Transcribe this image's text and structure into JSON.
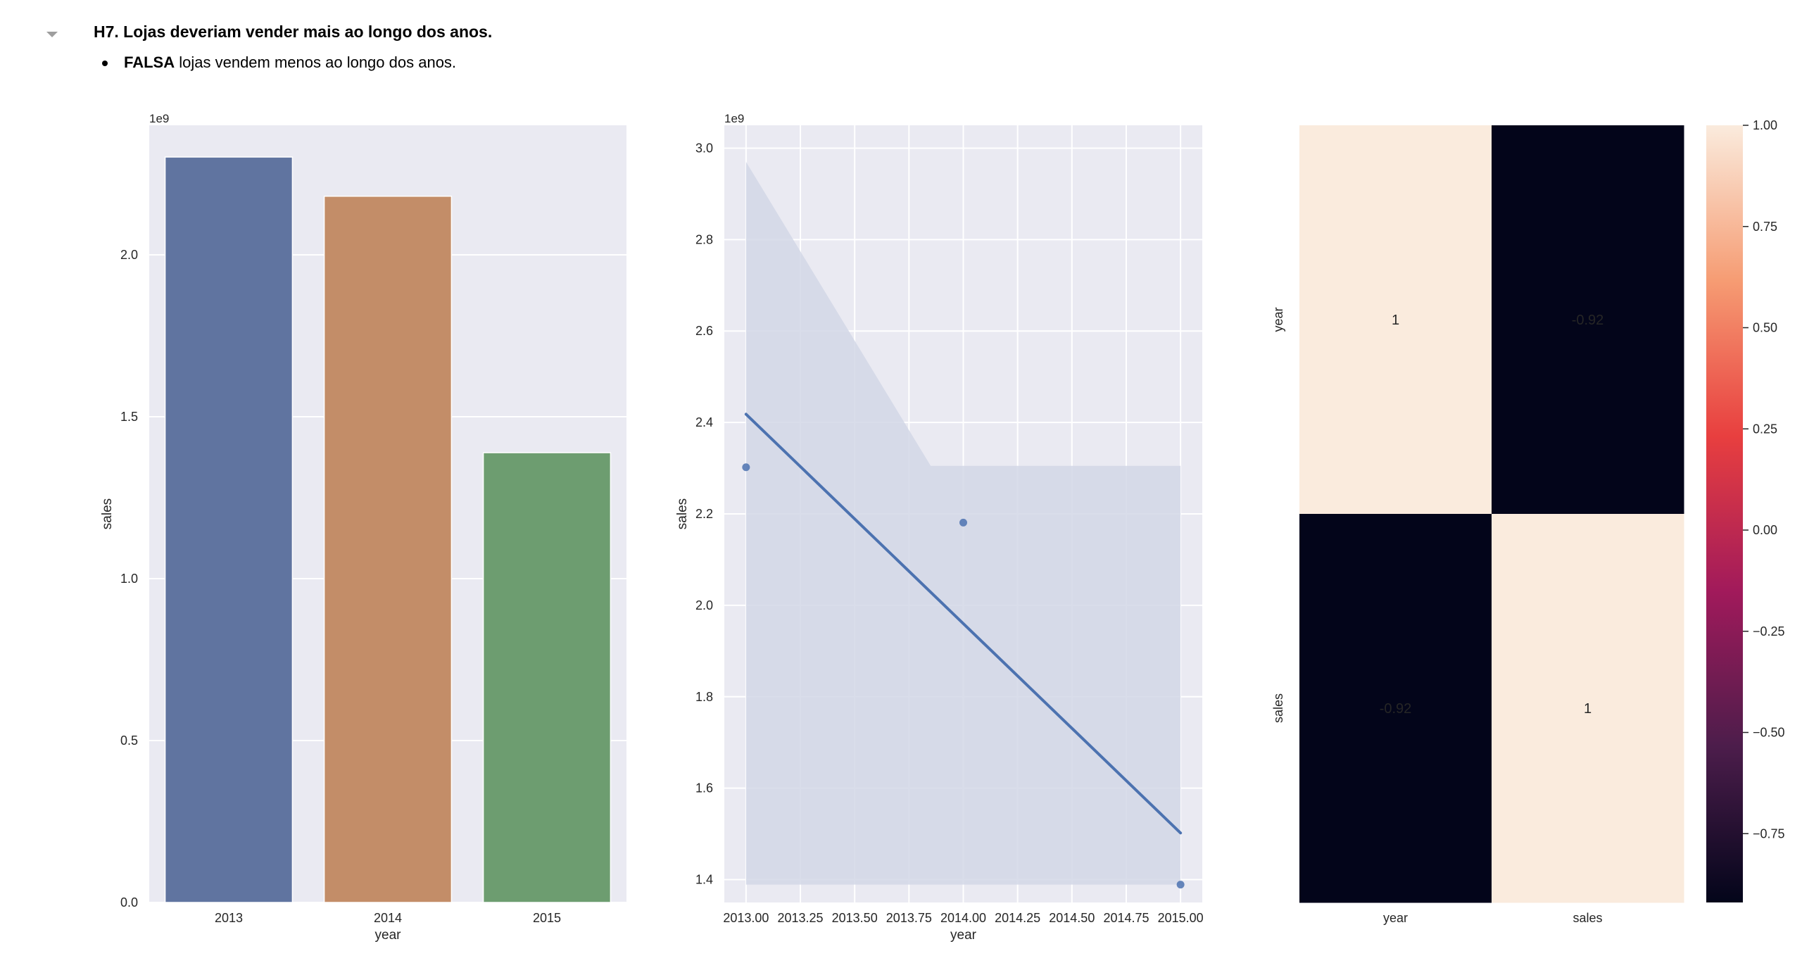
{
  "cell": {
    "heading": "H7. Lojas deveriam vender mais ao longo dos anos.",
    "bullet": {
      "bold": "FALSA",
      "text": " lojas vendem menos ao longo dos anos."
    }
  },
  "colors": {
    "axes_bg": "#eaeaf2",
    "grid": "#ffffff",
    "bar_2013": "#6074a0",
    "bar_2014": "#c38d68",
    "bar_2015": "#6d9d70",
    "regression_line": "#4c72b0",
    "ci_band": "#d2d7e6"
  },
  "chart_data": [
    {
      "type": "bar",
      "categories": [
        "2013",
        "2014",
        "2015"
      ],
      "values": [
        2302000000,
        2181000000,
        1389000000
      ],
      "xlabel": "year",
      "ylabel": "sales",
      "ylim": [
        0,
        2400000000
      ],
      "yticks": [
        0.0,
        0.5,
        1.0,
        1.5,
        2.0
      ],
      "ytick_labels": [
        "0.0",
        "0.5",
        "1.0",
        "1.5",
        "2.0"
      ],
      "offset_label": "1e9",
      "grid": true
    },
    {
      "type": "scatter",
      "x": [
        2013.0,
        2014.0,
        2015.0
      ],
      "y": [
        2302000000,
        2181000000,
        1389000000
      ],
      "regression_line": {
        "x": [
          2013.0,
          2015.0
        ],
        "y": [
          2418000000,
          1502000000
        ]
      },
      "confidence_band": {
        "x": [
          2013.0,
          2013.85,
          2015.0
        ],
        "upper": [
          2970000000,
          2305000000,
          2305000000
        ],
        "lower": [
          1389000000,
          1389000000,
          1389000000
        ]
      },
      "xlabel": "year",
      "ylabel": "sales",
      "xlim": [
        2012.9,
        2015.1
      ],
      "ylim": [
        1350000000,
        3050000000
      ],
      "xticks": [
        2013.0,
        2013.25,
        2013.5,
        2013.75,
        2014.0,
        2014.25,
        2014.5,
        2014.75,
        2015.0
      ],
      "xtick_labels": [
        "2013.00",
        "2013.25",
        "2013.50",
        "2013.75",
        "2014.00",
        "2014.25",
        "2014.50",
        "2014.75",
        "2015.00"
      ],
      "yticks": [
        1.4,
        1.6,
        1.8,
        2.0,
        2.2,
        2.4,
        2.6,
        2.8,
        3.0
      ],
      "ytick_labels": [
        "1.4",
        "1.6",
        "1.8",
        "2.0",
        "2.2",
        "2.4",
        "2.6",
        "2.8",
        "3.0"
      ],
      "offset_label": "1e9",
      "grid": true
    },
    {
      "type": "heatmap",
      "rows": [
        "year",
        "sales"
      ],
      "cols": [
        "year",
        "sales"
      ],
      "values": [
        [
          1,
          -0.92
        ],
        [
          -0.92,
          1
        ]
      ],
      "annotations": [
        [
          "1",
          "-0.92"
        ],
        [
          "-0.92",
          "1"
        ]
      ],
      "colorbar": {
        "vmin": -0.92,
        "vmax": 1.0,
        "ticks": [
          -0.75,
          -0.5,
          -0.25,
          0.0,
          0.25,
          0.5,
          0.75,
          1.0
        ],
        "tick_labels": [
          "−0.75",
          "−0.50",
          "−0.25",
          "0.00",
          "0.25",
          "0.50",
          "0.75",
          "1.00"
        ],
        "colormap": "rocket",
        "colormap_stops": [
          "#03051a",
          "#4c1d4b",
          "#a11a5b",
          "#e83f3f",
          "#f69c73",
          "#faebdd"
        ]
      }
    }
  ]
}
